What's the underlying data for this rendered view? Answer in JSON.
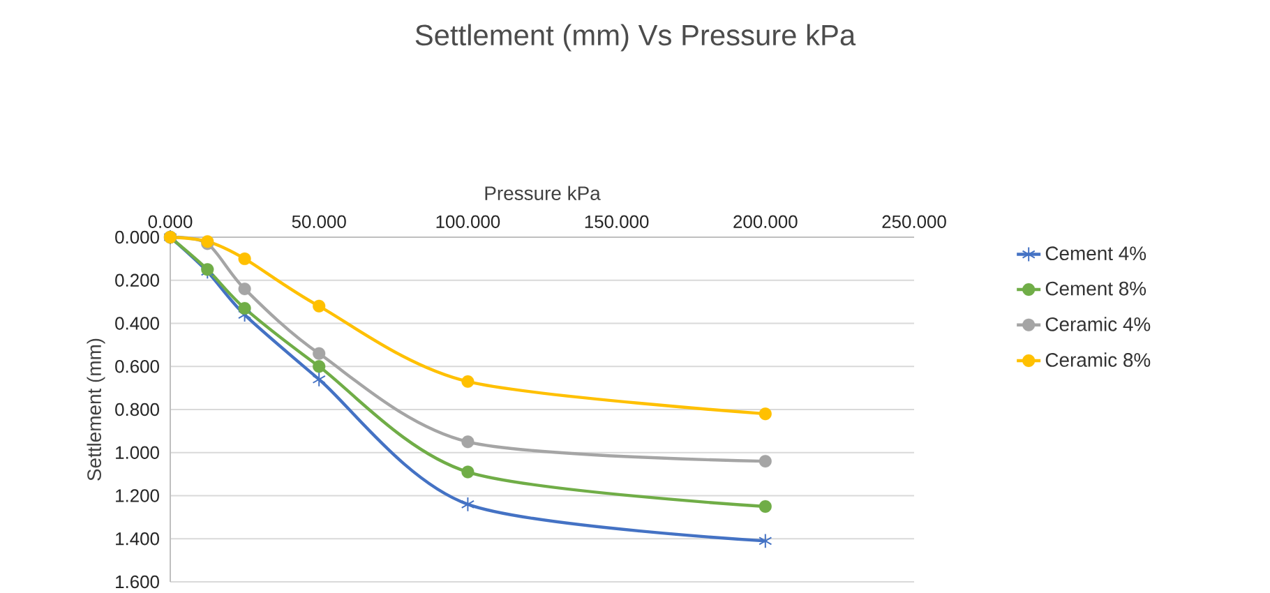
{
  "chart_data": {
    "type": "line",
    "title": "Settlement (mm) Vs Pressure kPa",
    "xlabel": "Pressure kPa",
    "ylabel": "Settlement (mm)",
    "x": [
      0,
      12.5,
      25,
      50,
      100,
      200
    ],
    "xlim": [
      0,
      250
    ],
    "xticks": [
      {
        "value": 0,
        "label": "0.000"
      },
      {
        "value": 50,
        "label": "50.000"
      },
      {
        "value": 100,
        "label": "100.000"
      },
      {
        "value": 150,
        "label": "150.000"
      },
      {
        "value": 200,
        "label": "200.000"
      },
      {
        "value": 250,
        "label": "250.000"
      }
    ],
    "ylim": [
      1.6,
      0
    ],
    "yticks": [
      {
        "value": 0,
        "label": "0.000"
      },
      {
        "value": 0.2,
        "label": "0.200"
      },
      {
        "value": 0.4,
        "label": "0.400"
      },
      {
        "value": 0.6,
        "label": "0.600"
      },
      {
        "value": 0.8,
        "label": "0.800"
      },
      {
        "value": 1.0,
        "label": "1.000"
      },
      {
        "value": 1.2,
        "label": "1.200"
      },
      {
        "value": 1.4,
        "label": "1.400"
      },
      {
        "value": 1.6,
        "label": "1.600"
      }
    ],
    "grid": "y",
    "legend": "right",
    "marker": "circle",
    "line_style": "solid",
    "series": [
      {
        "name": "Cement 4%",
        "color": "#4472c4",
        "marker": "cross",
        "values": [
          0,
          0.16,
          0.36,
          0.66,
          1.24,
          1.41
        ]
      },
      {
        "name": "Cement 8%",
        "color": "#70ad47",
        "values": [
          0,
          0.15,
          0.33,
          0.6,
          1.09,
          1.25
        ]
      },
      {
        "name": "Ceramic 4%",
        "color": "#a5a5a5",
        "values": [
          0,
          0.03,
          0.24,
          0.54,
          0.95,
          1.04
        ]
      },
      {
        "name": "Ceramic 8%",
        "color": "#ffc000",
        "values": [
          0,
          0.02,
          0.1,
          0.32,
          0.67,
          0.82
        ]
      }
    ]
  }
}
